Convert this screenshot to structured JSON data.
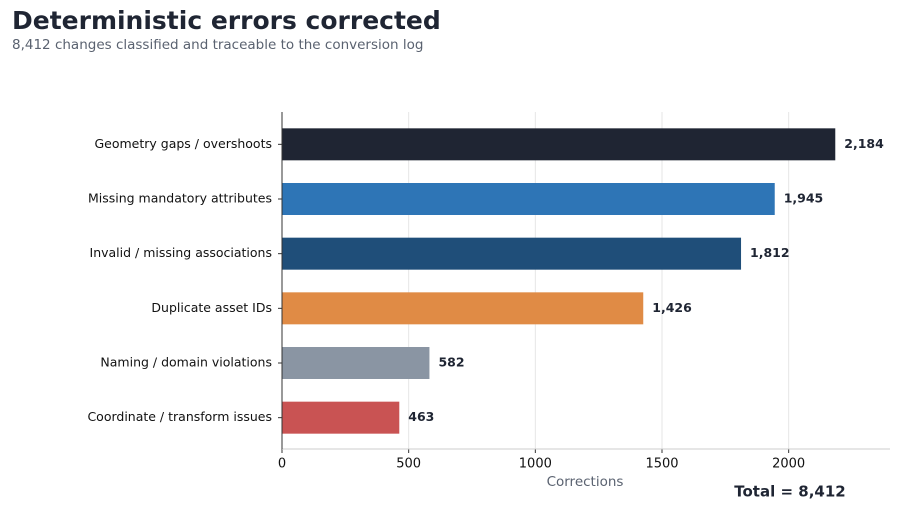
{
  "chart_data": {
    "type": "bar",
    "orientation": "horizontal",
    "title": "Deterministic errors corrected",
    "subtitle": "8,412 changes classified and traceable to the conversion log",
    "categories": [
      "Geometry gaps / overshoots",
      "Missing mandatory attributes",
      "Invalid / missing associations",
      "Duplicate asset IDs",
      "Naming / domain violations",
      "Coordinate / transform issues"
    ],
    "values": [
      2184,
      1945,
      1812,
      1426,
      582,
      463
    ],
    "value_labels": [
      "2,184",
      "1,945",
      "1,812",
      "1,426",
      "582",
      "463"
    ],
    "colors": [
      "#1f2533",
      "#2e75b6",
      "#1f4e79",
      "#e08b45",
      "#8a95a3",
      "#c95353"
    ],
    "xlabel": "Corrections",
    "xlim": [
      0,
      2400
    ],
    "xticks": [
      0,
      500,
      1000,
      1500,
      2000
    ],
    "grid": true,
    "annotation": "Total = 8,412"
  }
}
